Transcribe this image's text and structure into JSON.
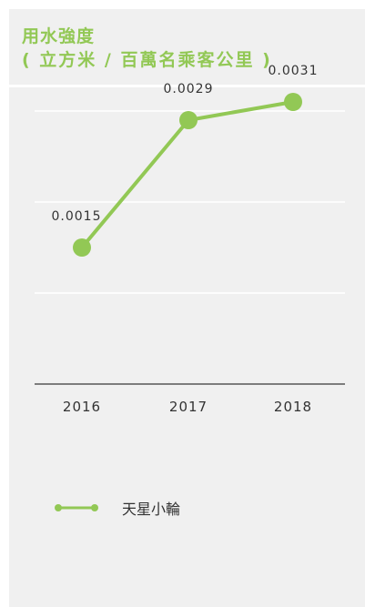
{
  "header": {
    "title": "用水強度",
    "subtitle": "( 立方米 / 百萬名乘客公里 )"
  },
  "colors": {
    "accent": "#92c855",
    "gridline": "#ffffff",
    "axis": "#555555",
    "text": "#333333",
    "background": "#f0f0f0"
  },
  "chart_data": {
    "type": "line",
    "title": "用水強度",
    "subtitle": "( 立方米 / 百萬名乘客公里 )",
    "categories": [
      "2016",
      "2017",
      "2018"
    ],
    "series": [
      {
        "name": "天星小輪",
        "values": [
          0.0015,
          0.0029,
          0.0031
        ],
        "labels": [
          "0.0015",
          "0.0029",
          "0.0031"
        ],
        "color": "#92c855"
      }
    ],
    "ylim": [
      0,
      0.0035
    ],
    "grid": true,
    "legend_position": "bottom-left"
  }
}
